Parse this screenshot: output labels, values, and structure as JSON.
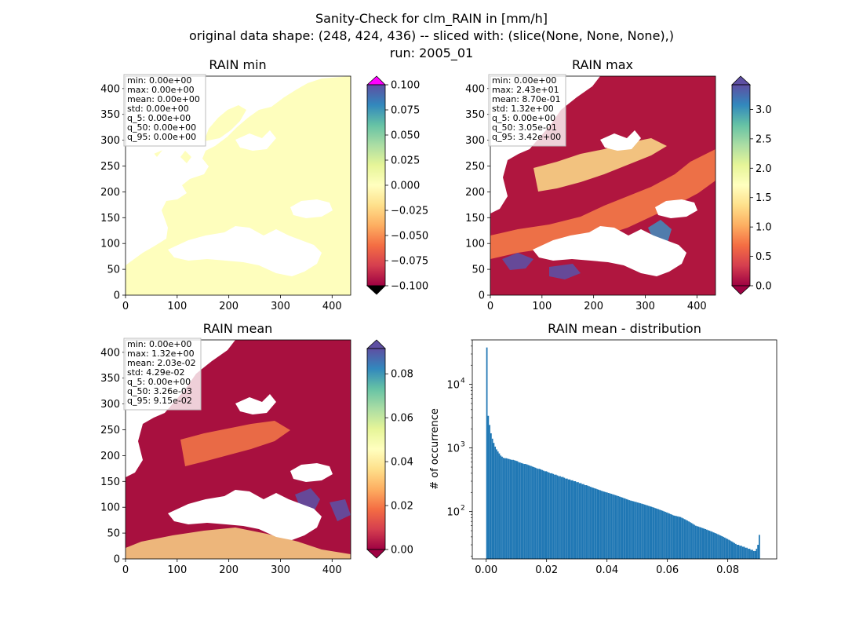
{
  "figure": {
    "suptitle_lines": [
      "Sanity-Check for clm_RAIN in [mm/h]",
      "original data shape: (248, 424, 436) -- sliced with: (slice(None, None, None),)",
      "run: 2005_01"
    ]
  },
  "colors": {
    "land_min": "#fefebd",
    "colormap": "Spectral",
    "colormap_stops": [
      "#9e0142",
      "#d53e4f",
      "#f46d43",
      "#fdae61",
      "#fee08b",
      "#ffffbf",
      "#e6f598",
      "#abdda4",
      "#66c2a5",
      "#3288bd",
      "#5e4fa2"
    ],
    "over_color_min": "#ff00ff",
    "under_color": "#000000",
    "hist_bar": "#1f77b4",
    "stats_box_edge": "#bbbbbb"
  },
  "panels": [
    {
      "id": "min",
      "title": "RAIN min",
      "x_ticks": [
        "0",
        "100",
        "200",
        "300",
        "400"
      ],
      "y_ticks": [
        "0",
        "50",
        "100",
        "150",
        "200",
        "250",
        "300",
        "350",
        "400"
      ],
      "stats": [
        "min: 0.00e+00",
        "max: 0.00e+00",
        "mean: 0.00e+00",
        "std: 0.00e+00",
        "q_5: 0.00e+00",
        "q_50: 0.00e+00",
        "q_95: 0.00e+00"
      ],
      "colorbar": {
        "ticks": [
          "0.100",
          "0.075",
          "0.050",
          "0.025",
          "0.000",
          "−0.025",
          "−0.050",
          "−0.075",
          "−0.100"
        ],
        "vmin": -0.1,
        "vmax": 0.1,
        "extend": "both"
      }
    },
    {
      "id": "max",
      "title": "RAIN max",
      "x_ticks": [
        "0",
        "100",
        "200",
        "300",
        "400"
      ],
      "y_ticks": [
        "0",
        "50",
        "100",
        "150",
        "200",
        "250",
        "300",
        "350",
        "400"
      ],
      "stats": [
        "min: 0.00e+00",
        "max: 2.43e+01",
        "mean: 8.70e-01",
        "std: 1.32e+00",
        "q_5: 0.00e+00",
        "q_50: 3.05e-01",
        "q_95: 3.42e+00"
      ],
      "colorbar": {
        "ticks": [
          "3.0",
          "2.5",
          "2.0",
          "1.5",
          "1.0",
          "0.5",
          "0.0"
        ],
        "vmin": 0.0,
        "vmax": 3.42,
        "extend": "both"
      }
    },
    {
      "id": "mean",
      "title": "RAIN mean",
      "x_ticks": [
        "0",
        "100",
        "200",
        "300",
        "400"
      ],
      "y_ticks": [
        "0",
        "50",
        "100",
        "150",
        "200",
        "250",
        "300",
        "350",
        "400"
      ],
      "stats": [
        "min: 0.00e+00",
        "max: 1.32e+00",
        "mean: 2.03e-02",
        "std: 4.29e-02",
        "q_5: 0.00e+00",
        "q_50: 3.26e-03",
        "q_95: 9.15e-02"
      ],
      "colorbar": {
        "ticks": [
          "0.08",
          "0.06",
          "0.04",
          "0.02",
          "0.00"
        ],
        "vmin": 0.0,
        "vmax": 0.0915,
        "extend": "both"
      }
    }
  ],
  "chart_data": {
    "type": "bar",
    "title": "RAIN mean - distribution",
    "xlabel": "",
    "ylabel": "# of occurrence",
    "yscale": "log",
    "xlim": [
      -0.0046,
      0.0962
    ],
    "ylim": [
      18,
      50000
    ],
    "x_ticks": [
      "0.00",
      "0.02",
      "0.04",
      "0.06",
      "0.08"
    ],
    "y_ticks": [
      "10",
      "10",
      "10"
    ],
    "y_tick_exponents": [
      "2",
      "3",
      "4"
    ],
    "bin_start": 0.0,
    "bin_width": 0.000458,
    "counts": [
      38000,
      3200,
      2300,
      1700,
      1400,
      1200,
      1050,
      950,
      880,
      820,
      760,
      730,
      700,
      690,
      690,
      680,
      670,
      660,
      650,
      650,
      640,
      630,
      620,
      600,
      590,
      580,
      570,
      560,
      560,
      550,
      540,
      530,
      520,
      510,
      500,
      490,
      480,
      470,
      470,
      460,
      450,
      440,
      430,
      430,
      420,
      410,
      400,
      400,
      390,
      380,
      380,
      370,
      360,
      360,
      350,
      350,
      340,
      330,
      330,
      320,
      320,
      310,
      310,
      300,
      300,
      290,
      290,
      280,
      280,
      270,
      270,
      260,
      260,
      255,
      250,
      245,
      240,
      236,
      232,
      228,
      224,
      220,
      216,
      212,
      208,
      205,
      202,
      199,
      196,
      193,
      190,
      187,
      184,
      181,
      178,
      175,
      172,
      169,
      166,
      163,
      160,
      157,
      154,
      151,
      149,
      147,
      145,
      143,
      141,
      139,
      137,
      135,
      133,
      131,
      129,
      127,
      125,
      123,
      121,
      119,
      117,
      115,
      113,
      111,
      109,
      107,
      105,
      103,
      101,
      99,
      97,
      95,
      93,
      91,
      89,
      87,
      86,
      85,
      84,
      83,
      82,
      80,
      78,
      76,
      74,
      72,
      70,
      68,
      66,
      64,
      62,
      60,
      59,
      58,
      57,
      56,
      55,
      54,
      53,
      52,
      51,
      50,
      49,
      48,
      47,
      46,
      45,
      44,
      43,
      42,
      41,
      40,
      39,
      38,
      37,
      36,
      35,
      34,
      33,
      32,
      31,
      30,
      30,
      29,
      29,
      28,
      28,
      27,
      27,
      26,
      26,
      25,
      25,
      24,
      24,
      26,
      30,
      43
    ]
  }
}
